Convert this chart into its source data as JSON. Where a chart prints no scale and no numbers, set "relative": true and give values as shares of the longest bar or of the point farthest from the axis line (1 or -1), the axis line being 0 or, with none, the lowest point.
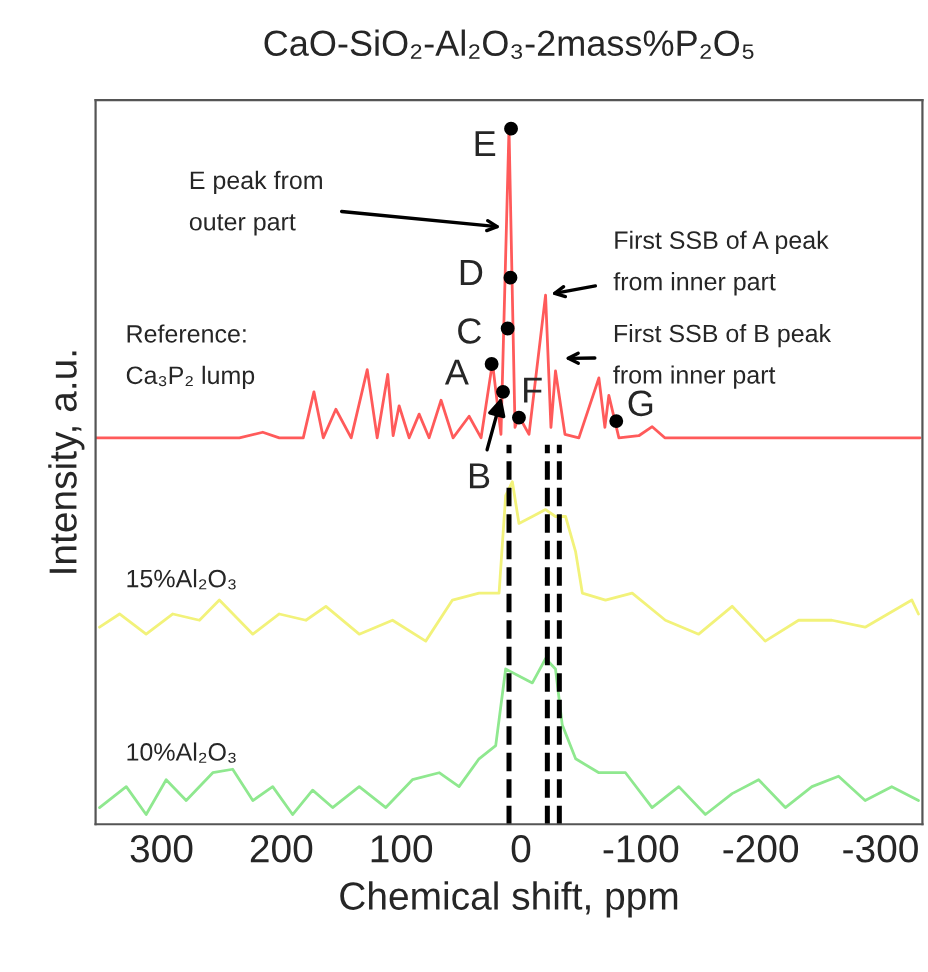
{
  "chart_data": {
    "type": "line",
    "title": "CaO-SiO₂-Al₂O₃-2mass%P₂O₅",
    "xlabel": "Chemical shift, ppm",
    "ylabel": "Intensity, a.u.",
    "relative": true,
    "tick_labels": "x",
    "grid": false,
    "legend": false,
    "line_style": "solid",
    "marker": "none",
    "xlim": [
      355,
      -335
    ],
    "xticks": [
      300,
      200,
      100,
      0,
      -100,
      -200,
      -300
    ],
    "series": [
      {
        "name": "Reference:\nCa₃P₂ lump",
        "color": "#ff5a5a",
        "x": [
          355,
          235,
          215.5,
          201.7,
          181.7,
          172.8,
          165,
          154.5,
          141.7,
          128.3,
          120,
          111.2,
          106.7,
          101.7,
          93.3,
          85,
          76.7,
          66.7,
          56.7,
          43.3,
          33.3,
          23.8,
          16.7,
          10,
          5,
          1.7,
          -6.7,
          -20.5,
          -25,
          -28.8,
          -36.7,
          -48.3,
          -65,
          -70,
          -73.3,
          -81.7,
          -98.3,
          -109.5,
          -120,
          -333
        ],
        "values": [
          0.555,
          0.555,
          0.563,
          0.555,
          0.555,
          0.621,
          0.555,
          0.596,
          0.555,
          0.653,
          0.555,
          0.646,
          0.558,
          0.601,
          0.555,
          0.589,
          0.555,
          0.609,
          0.555,
          0.586,
          0.555,
          0.663,
          0.56,
          1.0,
          0.57,
          0.586,
          0.56,
          0.76,
          0.57,
          0.651,
          0.56,
          0.555,
          0.641,
          0.57,
          0.616,
          0.555,
          0.558,
          0.571,
          0.555,
          0.555
        ]
      },
      {
        "name": "15%Al₂O₃",
        "color": "#f2f27a",
        "x": [
          351.7,
          335,
          312.8,
          290.5,
          268.3,
          251.7,
          223.8,
          201.7,
          179.5,
          162.8,
          135,
          107.2,
          79.5,
          57.2,
          35,
          18.3,
          12.8,
          7.2,
          1.7,
          -9.5,
          -20.5,
          -28.8,
          -37.2,
          -45.5,
          -51.2,
          -70.5,
          -92.8,
          -120.5,
          -148.3,
          -176.2,
          -203.8,
          -231.7,
          -259.5,
          -287.2,
          -326.2,
          -331.7
        ],
        "values": [
          0.283,
          0.302,
          0.273,
          0.302,
          0.293,
          0.322,
          0.273,
          0.302,
          0.293,
          0.313,
          0.273,
          0.293,
          0.263,
          0.322,
          0.332,
          0.332,
          0.472,
          0.492,
          0.432,
          0.442,
          0.452,
          0.442,
          0.442,
          0.392,
          0.332,
          0.322,
          0.332,
          0.293,
          0.273,
          0.313,
          0.263,
          0.293,
          0.293,
          0.283,
          0.322,
          0.302
        ]
      },
      {
        "name": "10%Al₂O₃",
        "color": "#8fe88f",
        "x": [
          351.7,
          329.4,
          312.8,
          296.1,
          279.4,
          257.2,
          240.6,
          223.8,
          207.2,
          190.6,
          173.9,
          157.2,
          135,
          112.8,
          90.6,
          68.3,
          51.7,
          35,
          21.1,
          12.8,
          1.7,
          -9.5,
          -20.5,
          -28.8,
          -34.4,
          -45.6,
          -65,
          -87.2,
          -109.4,
          -131.7,
          -153.9,
          -176.2,
          -198.3,
          -220.6,
          -242.8,
          -265,
          -287.2,
          -309.4,
          -331.7
        ],
        "values": [
          0.024,
          0.054,
          0.014,
          0.064,
          0.034,
          0.074,
          0.079,
          0.034,
          0.054,
          0.014,
          0.049,
          0.024,
          0.054,
          0.024,
          0.064,
          0.074,
          0.054,
          0.094,
          0.113,
          0.223,
          0.213,
          0.203,
          0.238,
          0.223,
          0.143,
          0.094,
          0.074,
          0.074,
          0.024,
          0.054,
          0.014,
          0.044,
          0.064,
          0.024,
          0.054,
          0.069,
          0.034,
          0.054,
          0.034
        ]
      }
    ],
    "ref_lines": [
      {
        "axis": "x",
        "value": 10,
        "color": "#000000",
        "line_style": "dashed"
      },
      {
        "axis": "x",
        "value": -22,
        "color": "#000000",
        "line_style": "dashed"
      },
      {
        "axis": "x",
        "value": -32,
        "color": "#000000",
        "line_style": "dashed"
      }
    ],
    "annotations": [
      {
        "text": "E",
        "x": 8.3,
        "y": 0.999
      },
      {
        "text": "D",
        "x": 8.8,
        "y": 0.785
      },
      {
        "text": "C",
        "x": 11.1,
        "y": 0.712
      },
      {
        "text": "A",
        "x": 24.5,
        "y": 0.661
      },
      {
        "text": "B",
        "x": 15,
        "y": 0.621
      },
      {
        "text": "F",
        "x": 1.7,
        "y": 0.584
      },
      {
        "text": "G",
        "x": -79.5,
        "y": 0.579
      },
      {
        "text": "E peak from\nouter part",
        "x": 12.2,
        "y": 0.857
      },
      {
        "text": "First SSB of A peak\nfrom inner part",
        "x": -20.5,
        "y": 0.76
      },
      {
        "text": "First SSB of B peak\nfrom inner part",
        "x": -31.7,
        "y": 0.669
      }
    ]
  }
}
